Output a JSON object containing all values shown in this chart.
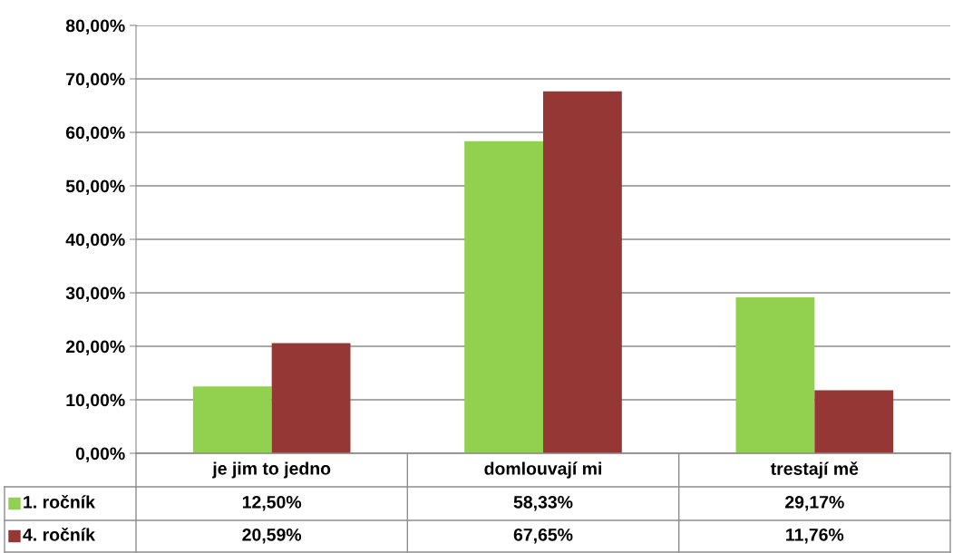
{
  "chart_data": {
    "type": "bar",
    "categories": [
      "je jim to jedno",
      "domlouvají mi",
      "trestají mě"
    ],
    "series": [
      {
        "name": "1. ročník",
        "color": "#92d050",
        "values": [
          12.5,
          58.33,
          29.17
        ],
        "value_labels": [
          "12,50%",
          "58,33%",
          "29,17%"
        ]
      },
      {
        "name": "4. ročník",
        "color": "#953735",
        "values": [
          20.59,
          67.65,
          11.76
        ],
        "value_labels": [
          "20,59%",
          "67,65%",
          "11,76%"
        ]
      }
    ],
    "ylim": [
      0,
      80
    ],
    "yticks": [
      {
        "value": 0,
        "label": "0,00%"
      },
      {
        "value": 10,
        "label": "10,00%"
      },
      {
        "value": 20,
        "label": "20,00%"
      },
      {
        "value": 30,
        "label": "30,00%"
      },
      {
        "value": 40,
        "label": "40,00%"
      },
      {
        "value": 50,
        "label": "50,00%"
      },
      {
        "value": 60,
        "label": "60,00%"
      },
      {
        "value": 70,
        "label": "70,00%"
      },
      {
        "value": 80,
        "label": "80,00%"
      }
    ],
    "grid": "y",
    "legend": "bottom"
  }
}
